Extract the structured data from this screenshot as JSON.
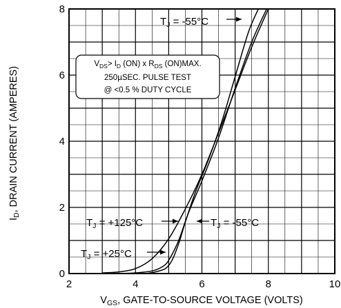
{
  "chart_data": {
    "type": "line",
    "xlabel": {
      "main": "V",
      "sub": "GS",
      "rest": ", GATE-TO-SOURCE VOLTAGE (VOLTS)"
    },
    "ylabel": {
      "main": "I",
      "sub": "D",
      "rest": ", DRAIN CURRENT (AMPERES)"
    },
    "xlim": [
      2,
      10
    ],
    "ylim": [
      0,
      8
    ],
    "xticks": [
      "2",
      "4",
      "6",
      "8",
      "10"
    ],
    "yticks": [
      "0",
      "2",
      "4",
      "6",
      "8"
    ],
    "grid": true,
    "series": [
      {
        "name": "T_J = -55°C",
        "x": [
          3.0,
          3.5,
          4.0,
          4.5,
          5.0,
          5.5,
          6.0,
          6.5,
          7.0,
          7.5,
          8.0
        ],
        "y": [
          0.02,
          0.05,
          0.15,
          0.45,
          1.05,
          1.95,
          3.0,
          4.25,
          5.55,
          6.85,
          8.0
        ]
      },
      {
        "name": "T_J = +25°C",
        "x": [
          3.5,
          4.0,
          4.5,
          4.8,
          5.0,
          5.3,
          5.6,
          6.0,
          6.5,
          7.0,
          7.5,
          7.95
        ],
        "y": [
          0.0,
          0.02,
          0.08,
          0.2,
          0.4,
          1.0,
          1.85,
          2.8,
          4.1,
          5.6,
          7.0,
          8.0
        ]
      },
      {
        "name": "T_J = +125°C",
        "x": [
          4.3,
          4.6,
          4.9,
          5.1,
          5.3,
          5.5,
          5.8,
          6.2,
          6.6,
          7.0,
          7.4,
          7.7
        ],
        "y": [
          0.0,
          0.05,
          0.15,
          0.4,
          0.9,
          1.55,
          2.45,
          3.45,
          4.6,
          5.95,
          7.3,
          8.0
        ]
      }
    ],
    "annotations": [
      {
        "parts": [
          {
            "t": "T"
          },
          {
            "t": "J",
            "sub": true
          },
          {
            "t": " = -55°C"
          }
        ]
      },
      {
        "parts": [
          {
            "t": "T"
          },
          {
            "t": "J",
            "sub": true
          },
          {
            "t": " = +125°C"
          }
        ]
      },
      {
        "parts": [
          {
            "t": "T"
          },
          {
            "t": "J",
            "sub": true
          },
          {
            "t": " = -55°C"
          }
        ]
      },
      {
        "parts": [
          {
            "t": "T"
          },
          {
            "t": "J",
            "sub": true
          },
          {
            "t": " = +25°C"
          }
        ]
      }
    ],
    "note_lines": [
      [
        {
          "t": "V"
        },
        {
          "t": "DS",
          "sub": true
        },
        {
          "t": "> I"
        },
        {
          "t": "D",
          "sub": true
        },
        {
          "t": " (ON) x  R"
        },
        {
          "t": "DS",
          "sub": true
        },
        {
          "t": " (ON)MAX."
        }
      ],
      [
        {
          "t": "250µSEC. PULSE TEST"
        }
      ],
      [
        {
          "t": "@ <0.5 % DUTY CYCLE"
        }
      ]
    ]
  }
}
